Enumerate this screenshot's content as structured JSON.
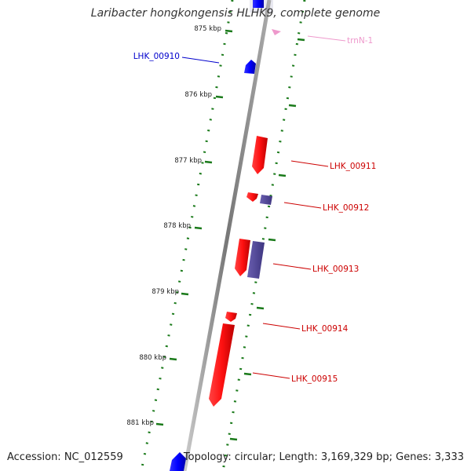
{
  "title": "Laribacter hongkongensis HLHK9, complete genome",
  "footer": {
    "accession": "Accession: NC_012559",
    "summary": "Topology: circular; Length: 3,169,329 bp; Genes: 3,333"
  },
  "ruler": {
    "tick_labels": [
      "875 kbp",
      "876 kbp",
      "877 kbp",
      "878 kbp",
      "879 kbp",
      "880 kbp",
      "881 kbp"
    ]
  },
  "features": [
    {
      "name": "LHK_00910",
      "strand": "forward",
      "color": "#0000cc"
    },
    {
      "name": "trnN-1",
      "strand": "reverse",
      "color": "#ee99cc"
    },
    {
      "name": "LHK_00911",
      "strand": "reverse",
      "color": "#cc0000"
    },
    {
      "name": "LHK_00912",
      "strand": "reverse",
      "color": "#cc0000"
    },
    {
      "name": "LHK_00913",
      "strand": "reverse",
      "color": "#cc0000"
    },
    {
      "name": "LHK_00914",
      "strand": "reverse",
      "color": "#cc0000"
    },
    {
      "name": "LHK_00915",
      "strand": "reverse",
      "color": "#cc0000"
    }
  ],
  "colors": {
    "backbone": "#888888",
    "tick": "#1a7a1a",
    "forward_gene": "#0000ff",
    "reverse_gene": "#ff0000",
    "other_feature": "#4b3f8c",
    "trna": "#ee99cc"
  }
}
